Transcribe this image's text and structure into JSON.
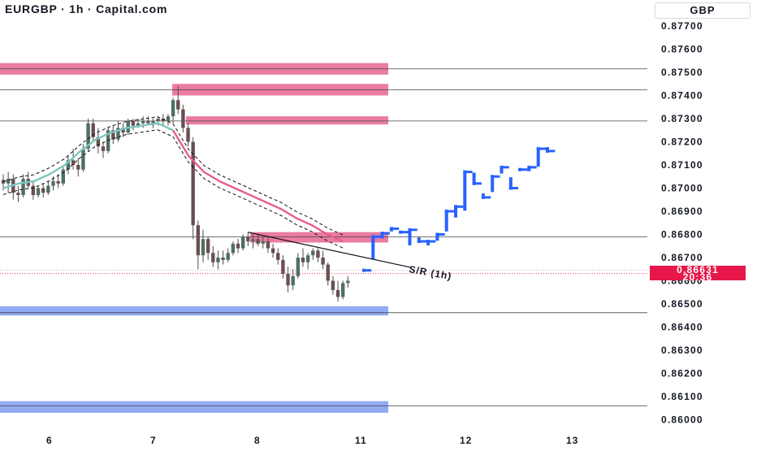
{
  "title": "EURGBP · 1h · Capital.com",
  "currency_label": "GBP",
  "current_price": {
    "value": "0.86631",
    "countdown": "20:36",
    "color": "#e8174a"
  },
  "colors": {
    "zone_pink": "#e55b8c",
    "zone_blue": "#6f8ef0",
    "forecast_blue": "#2962ff",
    "ema_pink": "#e85d8a",
    "ema_teal": "#7ec6c0",
    "candle": "#4a4a4a"
  },
  "chart_data": {
    "type": "candlestick",
    "title": "EURGBP · 1h · Capital.com",
    "xlabel": "",
    "ylabel": "",
    "ylim": [
      0.8597,
      0.8778
    ],
    "y_ticks": [
      "0.87700",
      "0.87600",
      "0.87500",
      "0.87400",
      "0.87300",
      "0.87200",
      "0.87100",
      "0.87000",
      "0.86900",
      "0.86800",
      "0.86700",
      "0.86600",
      "0.86500",
      "0.86400",
      "0.86300",
      "0.86200",
      "0.86100",
      "0.86000"
    ],
    "x_ticks": [
      {
        "label": "6",
        "bar": 10
      },
      {
        "label": "7",
        "bar": 36
      },
      {
        "label": "8",
        "bar": 54
      },
      {
        "label": "11",
        "bar": 76
      },
      {
        "label": "12",
        "bar": 97
      },
      {
        "label": "13",
        "bar": 119
      }
    ],
    "candles": [
      [
        0.87035,
        0.8706,
        0.8699,
        0.8702
      ],
      [
        0.8702,
        0.8707,
        0.8698,
        0.8704
      ],
      [
        0.8704,
        0.8706,
        0.8695,
        0.8698
      ],
      [
        0.8698,
        0.8701,
        0.8694,
        0.8697
      ],
      [
        0.8697,
        0.8706,
        0.8696,
        0.8704
      ],
      [
        0.8704,
        0.8707,
        0.87,
        0.8701
      ],
      [
        0.8701,
        0.8703,
        0.8695,
        0.8697
      ],
      [
        0.8697,
        0.8701,
        0.8696,
        0.87
      ],
      [
        0.87,
        0.8702,
        0.8696,
        0.8698
      ],
      [
        0.8698,
        0.8703,
        0.8697,
        0.8701
      ],
      [
        0.8701,
        0.8705,
        0.8699,
        0.8703
      ],
      [
        0.8703,
        0.8706,
        0.87,
        0.8702
      ],
      [
        0.8702,
        0.8709,
        0.8701,
        0.8708
      ],
      [
        0.8708,
        0.8714,
        0.8706,
        0.8712
      ],
      [
        0.8712,
        0.8717,
        0.8708,
        0.871
      ],
      [
        0.871,
        0.8713,
        0.8705,
        0.8708
      ],
      [
        0.8708,
        0.8719,
        0.8707,
        0.8717
      ],
      [
        0.8717,
        0.873,
        0.8716,
        0.8728
      ],
      [
        0.8728,
        0.873,
        0.872,
        0.8722
      ],
      [
        0.8722,
        0.8726,
        0.8715,
        0.8718
      ],
      [
        0.8718,
        0.872,
        0.8713,
        0.8716
      ],
      [
        0.8716,
        0.8726,
        0.8715,
        0.8725
      ],
      [
        0.8725,
        0.8727,
        0.8719,
        0.8721
      ],
      [
        0.8721,
        0.8729,
        0.872,
        0.8726
      ],
      [
        0.8726,
        0.8728,
        0.8722,
        0.8724
      ],
      [
        0.8724,
        0.873,
        0.8723,
        0.8729
      ],
      [
        0.8729,
        0.873,
        0.8725,
        0.8727
      ],
      [
        0.8727,
        0.873,
        0.8726,
        0.8728
      ],
      [
        0.8728,
        0.8731,
        0.8726,
        0.8729
      ],
      [
        0.8729,
        0.8731,
        0.8727,
        0.8728
      ],
      [
        0.8728,
        0.873,
        0.8726,
        0.8729
      ],
      [
        0.8729,
        0.8731,
        0.8727,
        0.873
      ],
      [
        0.873,
        0.8732,
        0.8727,
        0.8729
      ],
      [
        0.8729,
        0.8732,
        0.8727,
        0.8731
      ],
      [
        0.8731,
        0.8739,
        0.8728,
        0.8738
      ],
      [
        0.8738,
        0.8744,
        0.8732,
        0.8734
      ],
      [
        0.8734,
        0.8736,
        0.8724,
        0.8726
      ],
      [
        0.8726,
        0.8728,
        0.8718,
        0.872
      ],
      [
        0.872,
        0.8722,
        0.8678,
        0.8684
      ],
      [
        0.8684,
        0.8686,
        0.8665,
        0.8671
      ],
      [
        0.8671,
        0.8682,
        0.8668,
        0.8678
      ],
      [
        0.8678,
        0.8679,
        0.8669,
        0.8672
      ],
      [
        0.8672,
        0.8675,
        0.8666,
        0.8668
      ],
      [
        0.8668,
        0.8673,
        0.8665,
        0.867
      ],
      [
        0.867,
        0.8673,
        0.8667,
        0.8669
      ],
      [
        0.8669,
        0.8674,
        0.8668,
        0.8672
      ],
      [
        0.8672,
        0.8677,
        0.8671,
        0.8676
      ],
      [
        0.8676,
        0.8678,
        0.8672,
        0.8674
      ],
      [
        0.8674,
        0.868,
        0.8673,
        0.8679
      ],
      [
        0.8679,
        0.8681,
        0.8675,
        0.8677
      ],
      [
        0.8677,
        0.868,
        0.8674,
        0.8678
      ],
      [
        0.8678,
        0.868,
        0.8675,
        0.8676
      ],
      [
        0.8676,
        0.8679,
        0.8674,
        0.8677
      ],
      [
        0.8677,
        0.8679,
        0.8672,
        0.8674
      ],
      [
        0.8674,
        0.8676,
        0.867,
        0.8672
      ],
      [
        0.8672,
        0.8674,
        0.8667,
        0.8669
      ],
      [
        0.8669,
        0.8671,
        0.8661,
        0.8663
      ],
      [
        0.8663,
        0.8666,
        0.8655,
        0.8658
      ],
      [
        0.8658,
        0.8665,
        0.8656,
        0.8662
      ],
      [
        0.8662,
        0.8672,
        0.8661,
        0.867
      ],
      [
        0.867,
        0.8674,
        0.8666,
        0.8668
      ],
      [
        0.8668,
        0.8672,
        0.8665,
        0.8671
      ],
      [
        0.8671,
        0.8674,
        0.8669,
        0.8673
      ],
      [
        0.8673,
        0.8674,
        0.8668,
        0.867
      ],
      [
        0.867,
        0.8673,
        0.8665,
        0.8667
      ],
      [
        0.8667,
        0.8668,
        0.8658,
        0.866
      ],
      [
        0.866,
        0.8662,
        0.8654,
        0.8656
      ],
      [
        0.8656,
        0.866,
        0.8651,
        0.8653
      ],
      [
        0.8653,
        0.866,
        0.8652,
        0.8659
      ],
      [
        0.8659,
        0.8662,
        0.8657,
        0.866
      ]
    ],
    "ema_series": [
      0.87,
      0.8702,
      0.8703,
      0.8706,
      0.871,
      0.8716,
      0.8721,
      0.8724,
      0.8726,
      0.8727,
      0.8728,
      0.8725,
      0.8714,
      0.8707,
      0.8703,
      0.87,
      0.8697,
      0.8694,
      0.8691,
      0.8687,
      0.8684,
      0.868,
      0.8677
    ],
    "forecast_path": [
      [
        0.86645,
        0.86645
      ],
      [
        0.867,
        0.8679
      ],
      [
        0.8679,
        0.86805
      ],
      [
        0.8682,
        0.86825
      ],
      [
        0.8681,
        0.8681
      ],
      [
        0.8676,
        0.8682
      ],
      [
        0.8678,
        0.8677
      ],
      [
        0.8676,
        0.8677
      ],
      [
        0.8678,
        0.868
      ],
      [
        0.8682,
        0.869
      ],
      [
        0.8688,
        0.8692
      ],
      [
        0.8691,
        0.8707
      ],
      [
        0.8706,
        0.8702
      ],
      [
        0.8697,
        0.8696
      ],
      [
        0.8699,
        0.8705
      ],
      [
        0.8707,
        0.8709
      ],
      [
        0.8704,
        0.87
      ],
      [
        0.8708,
        0.8708
      ],
      [
        0.8708,
        0.8709
      ],
      [
        0.871,
        0.8717
      ],
      [
        0.8717,
        0.8716
      ]
    ],
    "horizontal_lines": [
      0.87515,
      0.87425,
      0.8729,
      0.8679,
      0.86462,
      0.8606
    ],
    "supply_zones": [
      [
        0.8749,
        0.8754
      ],
      [
        0.874,
        0.8745
      ],
      [
        0.87275,
        0.8731
      ],
      [
        0.86765,
        0.8681
      ]
    ],
    "demand_zones": [
      [
        0.8645,
        0.8649
      ],
      [
        0.8603,
        0.8608
      ]
    ],
    "current_price_line": 0.86631,
    "trendline": {
      "label": "S/R (1h)",
      "from": [
        0.8681
      ],
      "to": [
        0.8666
      ]
    }
  }
}
